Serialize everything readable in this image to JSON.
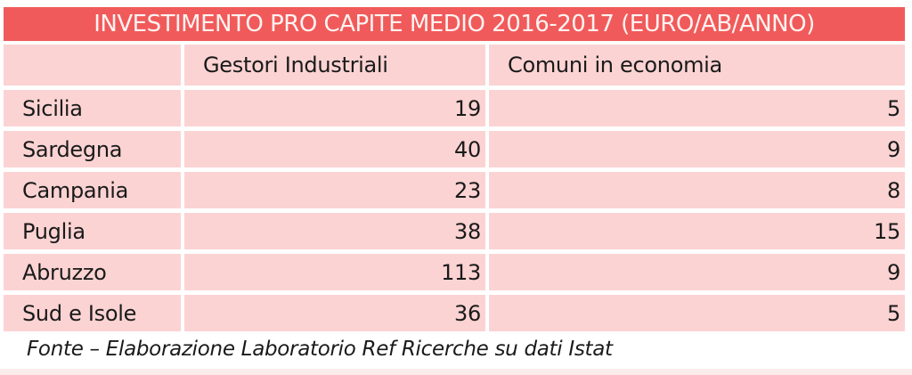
{
  "title": "INVESTIMENTO PRO CAPITE MEDIO 2016-2017 (EURO/AB/ANNO)",
  "table": {
    "columns": [
      "",
      "Gestori Industriali",
      "Comuni in economia"
    ],
    "rows": [
      {
        "label": "Sicilia",
        "gestori": "19",
        "comuni": "5"
      },
      {
        "label": "Sardegna",
        "gestori": "40",
        "comuni": "9"
      },
      {
        "label": "Campania",
        "gestori": "23",
        "comuni": "8"
      },
      {
        "label": "Puglia",
        "gestori": "38",
        "comuni": "15"
      },
      {
        "label": "Abruzzo",
        "gestori": "113",
        "comuni": "9"
      },
      {
        "label": "Sud e Isole",
        "gestori": "36",
        "comuni": "5"
      }
    ]
  },
  "footer": "Fonte – Elaborazione Laboratorio Ref Ricerche su dati Istat",
  "colors": {
    "title_bg": "#F15A5A",
    "title_text": "#FDF3F1",
    "cell_bg": "#FCD3D3",
    "text": "#1A1A1A",
    "bottom_strip": "#FBECEC"
  },
  "chart_data": {
    "type": "table",
    "title": "INVESTIMENTO PRO CAPITE MEDIO 2016-2017 (EURO/AB/ANNO)",
    "categories": [
      "Sicilia",
      "Sardegna",
      "Campania",
      "Puglia",
      "Abruzzo",
      "Sud e Isole"
    ],
    "series": [
      {
        "name": "Gestori Industriali",
        "values": [
          19,
          40,
          23,
          38,
          113,
          36
        ]
      },
      {
        "name": "Comuni in economia",
        "values": [
          5,
          9,
          8,
          15,
          9,
          5
        ]
      }
    ],
    "source": "Fonte – Elaborazione Laboratorio Ref Ricerche su dati Istat",
    "unit": "EURO/AB/ANNO"
  }
}
